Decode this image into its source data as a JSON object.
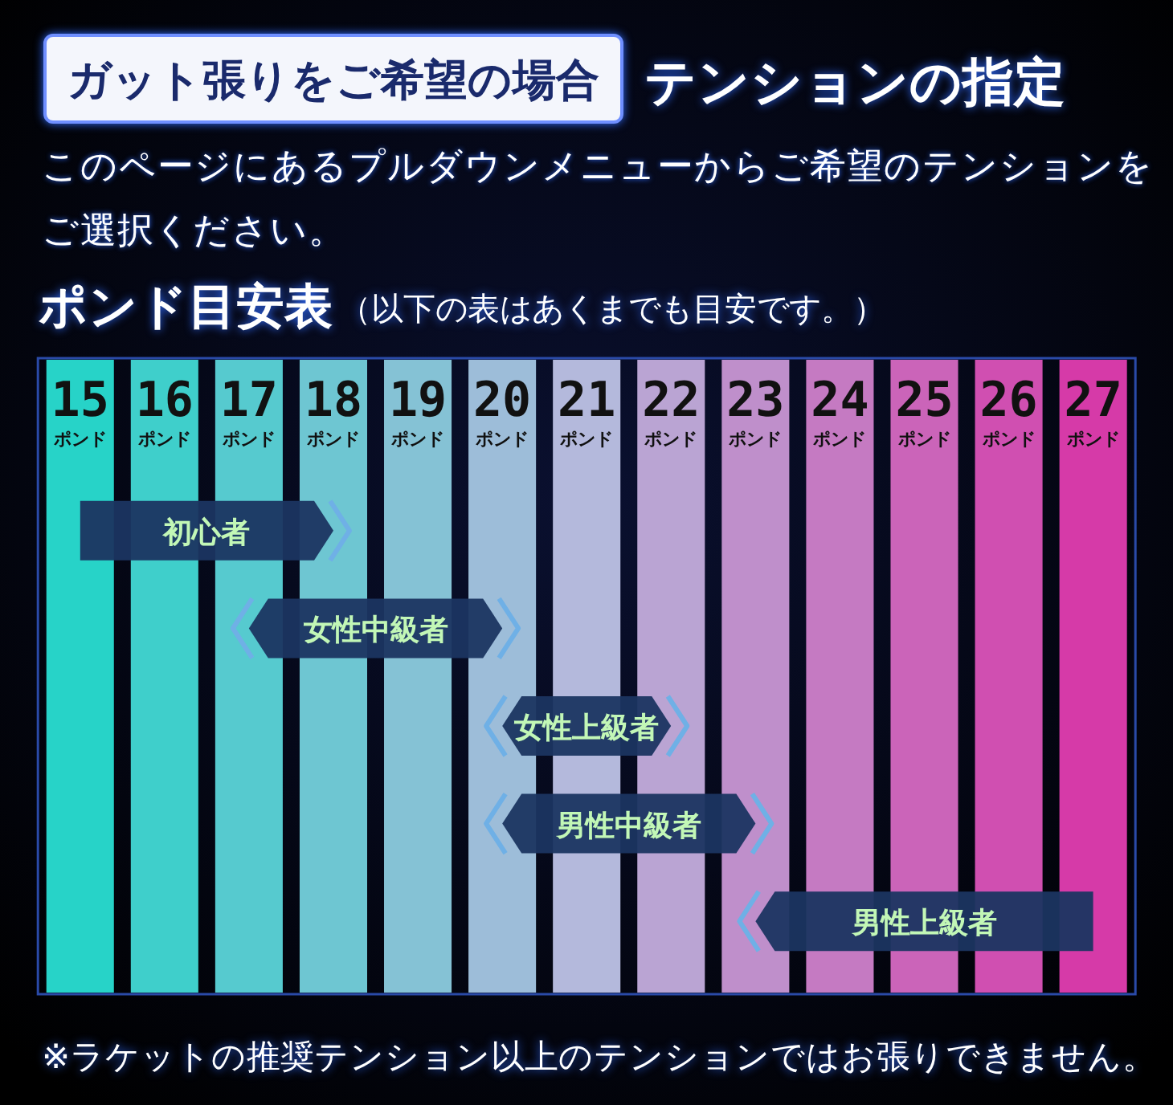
{
  "chart_data": {
    "type": "bar",
    "orientation": "horizontal",
    "title": "ガット張りをご希望の場合",
    "subtitle": "テンションの指定",
    "annotations": [
      "このページにあるプルダウンメニューからご希望のテンションをご選択ください。",
      "ポンド目安表",
      "（以下の表はあくまでも目安です。）",
      "※ラケットの推奨テンション以上のテンションではお張りできません。"
    ],
    "categories": [
      "初心者",
      "女性中級者",
      "女性上級者",
      "男性中級者",
      "男性上級者"
    ],
    "base": [
      15,
      17,
      20,
      20,
      23
    ],
    "values": [
      3,
      3,
      2,
      3,
      4
    ],
    "color": "#1b3561",
    "xlim": [
      14.5,
      27.5
    ],
    "xticks": [
      {
        "value": 15,
        "label": "15\nポンド"
      },
      {
        "value": 16,
        "label": "16\nポンド"
      },
      {
        "value": 17,
        "label": "17\nポンド"
      },
      {
        "value": 18,
        "label": "18\nポンド"
      },
      {
        "value": 19,
        "label": "19\nポンド"
      },
      {
        "value": 20,
        "label": "20\nポンド"
      },
      {
        "value": 21,
        "label": "21\nポンド"
      },
      {
        "value": 22,
        "label": "22\nポンド"
      },
      {
        "value": 23,
        "label": "23\nポンド"
      },
      {
        "value": 24,
        "label": "24\nポンド"
      },
      {
        "value": 25,
        "label": "25\nポンド"
      },
      {
        "value": 26,
        "label": "26\nポンド"
      },
      {
        "value": 27,
        "label": "27\nポンド"
      }
    ],
    "bands": [
      {
        "axis": "x",
        "from": 14.6,
        "to": 15.4,
        "color": "#27d3c8"
      },
      {
        "axis": "x",
        "from": 15.6,
        "to": 16.4,
        "color": "#3fcfcb"
      },
      {
        "axis": "x",
        "from": 16.6,
        "to": 17.4,
        "color": "#56cacf"
      },
      {
        "axis": "x",
        "from": 17.6,
        "to": 18.4,
        "color": "#6ec6d2"
      },
      {
        "axis": "x",
        "from": 18.6,
        "to": 19.4,
        "color": "#85c2d5"
      },
      {
        "axis": "x",
        "from": 19.6,
        "to": 20.4,
        "color": "#9dbdd9"
      },
      {
        "axis": "x",
        "from": 20.6,
        "to": 21.4,
        "color": "#b4b9dc"
      },
      {
        "axis": "x",
        "from": 21.6,
        "to": 22.4,
        "color": "#baa4d3"
      },
      {
        "axis": "x",
        "from": 22.6,
        "to": 23.4,
        "color": "#bf8fcb"
      },
      {
        "axis": "x",
        "from": 23.6,
        "to": 24.4,
        "color": "#c57ac2"
      },
      {
        "axis": "x",
        "from": 24.6,
        "to": 25.4,
        "color": "#cb64b9"
      },
      {
        "axis": "x",
        "from": 25.6,
        "to": 26.4,
        "color": "#d04fb1"
      },
      {
        "axis": "x",
        "from": 26.6,
        "to": 27.4,
        "color": "#d63aa8"
      }
    ]
  }
}
